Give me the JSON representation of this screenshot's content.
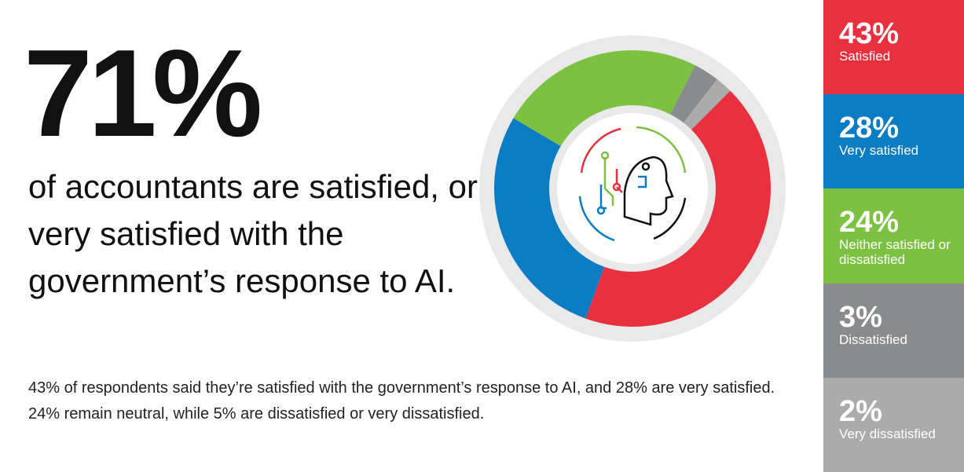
{
  "headline": "71%",
  "subheading": "of accountants are satisfied, or very satisfied with the government’s response to AI.",
  "body": "43% of respondents said they’re satisfied with the government’s response to AI, and 28% are very satisfied. 24% remain neutral, while 5% are dissatisfied or very dissatisfied.",
  "chart_data": {
    "type": "pie",
    "categories": [
      "Satisfied",
      "Very satisfied",
      "Neither satisfied or dissatisfied",
      "Dissatisfied",
      "Very dissatisfied"
    ],
    "values": [
      43,
      28,
      24,
      3,
      2
    ],
    "value_labels": [
      "43%",
      "28%",
      "24%",
      "3%",
      "2%"
    ],
    "colors": [
      "#e8303f",
      "#0a7cc4",
      "#7dc142",
      "#8a8b8c",
      "#ababab"
    ],
    "donut": true
  }
}
